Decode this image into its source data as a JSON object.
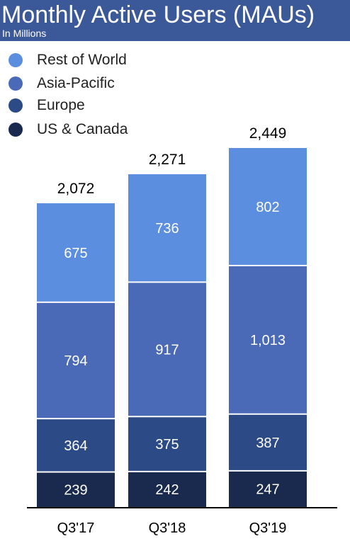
{
  "header": {
    "title": "Monthly Active Users (MAUs)",
    "subtitle": "In Millions"
  },
  "chart_data": {
    "type": "bar",
    "stacked": true,
    "title": "Monthly Active Users (MAUs)",
    "subtitle": "In Millions",
    "categories": [
      "Q3'17",
      "Q3'18",
      "Q3'19"
    ],
    "series": [
      {
        "name": "US & Canada",
        "color": "#1a2a4f",
        "values": [
          239,
          242,
          247
        ],
        "labels": [
          "239",
          "242",
          "247"
        ]
      },
      {
        "name": "Europe",
        "color": "#2c4a86",
        "values": [
          364,
          375,
          387
        ],
        "labels": [
          "364",
          "375",
          "387"
        ]
      },
      {
        "name": "Asia-Pacific",
        "color": "#4a6ab8",
        "values": [
          794,
          917,
          1013
        ],
        "labels": [
          "794",
          "917",
          "1,013"
        ]
      },
      {
        "name": "Rest of World",
        "color": "#5c8ee0",
        "values": [
          675,
          736,
          802
        ],
        "labels": [
          "675",
          "736",
          "802"
        ]
      }
    ],
    "totals": [
      2072,
      2271,
      2449
    ],
    "total_labels": [
      "2,072",
      "2,271",
      "2,449"
    ],
    "legend_order": [
      "Rest of World",
      "Asia-Pacific",
      "Europe",
      "US & Canada"
    ],
    "legend_position": "top-left",
    "grid": false,
    "ylim": [
      0,
      2449
    ]
  }
}
